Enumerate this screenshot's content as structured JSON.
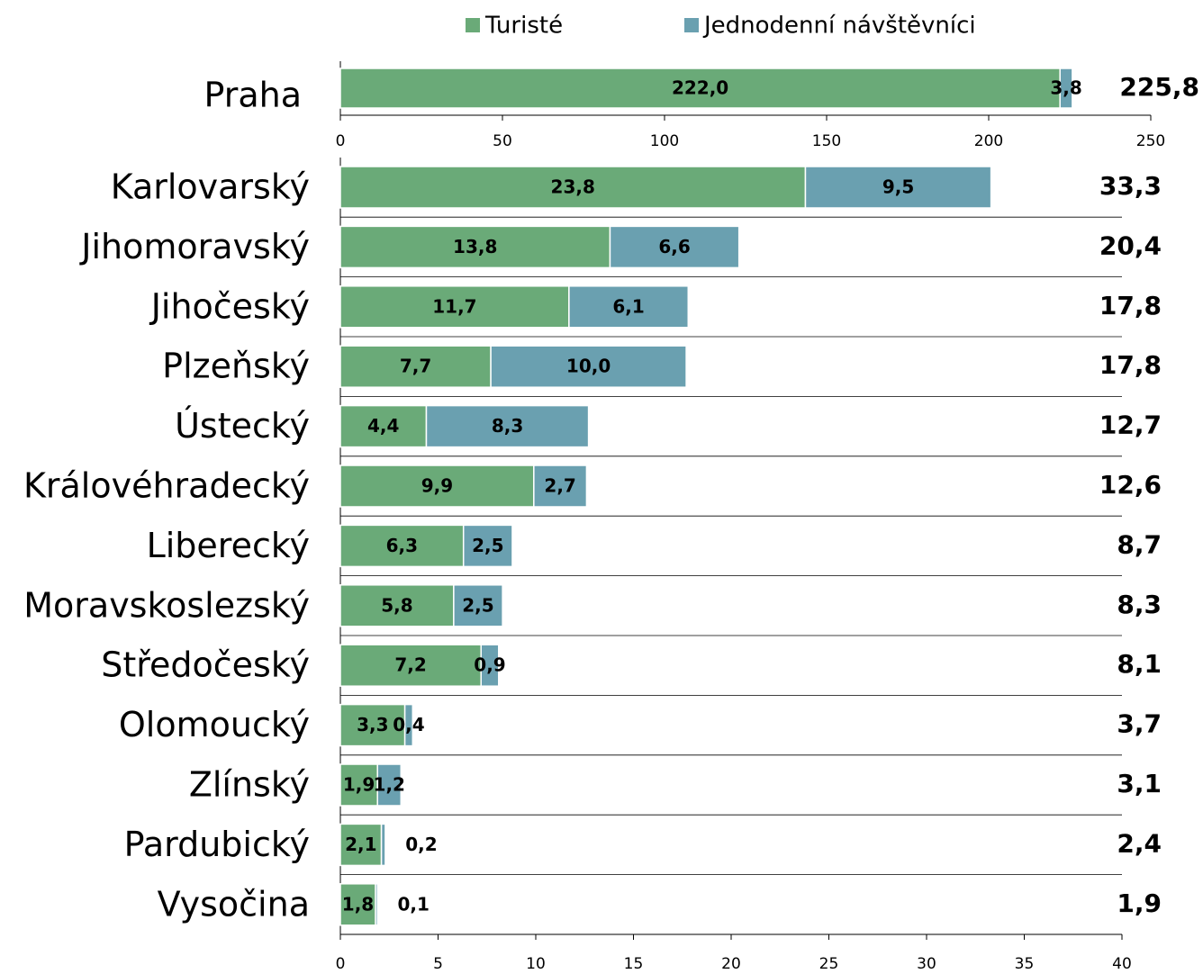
{
  "chart_data": [
    {
      "type": "bar",
      "orientation": "horizontal",
      "stacked": true,
      "categories": [
        "Praha"
      ],
      "series": [
        {
          "name": "Turisté",
          "color": "#6aaa78",
          "values": [
            222.0
          ],
          "value_labels": [
            "222,0"
          ]
        },
        {
          "name": "Jednodenní návštěvníci",
          "color": "#6aa0b0",
          "values": [
            3.8
          ],
          "value_labels": [
            "3,8"
          ]
        }
      ],
      "totals": [
        225.8
      ],
      "total_labels": [
        "225,8"
      ],
      "xlim": [
        0,
        250
      ],
      "xticks": [
        0,
        50,
        100,
        150,
        200,
        250
      ]
    },
    {
      "type": "bar",
      "orientation": "horizontal",
      "stacked": true,
      "categories": [
        "Karlovarský",
        "Jihomoravský",
        "Jihočeský",
        "Plzeňský",
        "Ústecký",
        "Královéhradecký",
        "Liberecký",
        "Moravskoslezský",
        "Středočeský",
        "Olomoucký",
        "Zlínský",
        "Pardubický",
        "Vysočina"
      ],
      "series": [
        {
          "color": "#6aaa78",
          "values": [
            23.8,
            13.8,
            11.7,
            7.7,
            4.4,
            9.9,
            6.3,
            5.8,
            7.2,
            3.3,
            1.9,
            2.1,
            1.8
          ],
          "value_labels": [
            "23,8",
            "13,8",
            "11,7",
            "7,7",
            "4,4",
            "9,9",
            "6,3",
            "5,8",
            "7,2",
            "3,3",
            "1,9",
            "2,1",
            "1,8"
          ]
        },
        {
          "color": "#6aa0b0",
          "values": [
            9.5,
            6.6,
            6.1,
            10.0,
            8.3,
            2.7,
            2.5,
            2.5,
            0.9,
            0.4,
            1.2,
            0.2,
            0.1
          ],
          "value_labels": [
            "9,5",
            "6,6",
            "6,1",
            "10,0",
            "8,3",
            "2,7",
            "2,5",
            "2,5",
            "0,9",
            "0,4",
            "1,2",
            "0,2",
            "0,1"
          ]
        }
      ],
      "totals": [
        33.3,
        20.4,
        17.8,
        17.8,
        12.7,
        12.6,
        8.7,
        8.3,
        8.1,
        3.7,
        3.1,
        2.4,
        1.9
      ],
      "total_labels": [
        "33,3",
        "20,4",
        "17,8",
        "17,8",
        "12,7",
        "12,6",
        "8,7",
        "8,3",
        "8,1",
        "3,7",
        "3,1",
        "2,4",
        "1,9"
      ],
      "xlim": [
        0,
        40
      ],
      "xticks": [
        0,
        5,
        10,
        15,
        20,
        25,
        30,
        35,
        40
      ]
    }
  ]
}
